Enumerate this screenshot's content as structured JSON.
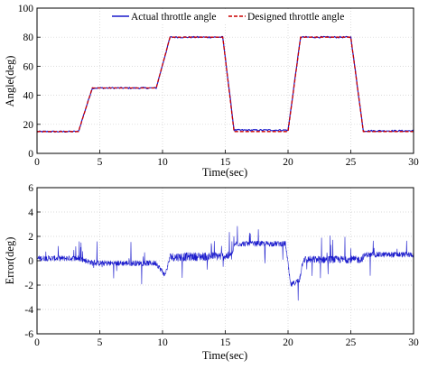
{
  "chart_data": [
    {
      "type": "line",
      "title": "",
      "xlabel": "Time(sec)",
      "ylabel": "Angle(deg)",
      "xlim": [
        0,
        30
      ],
      "ylim": [
        0,
        100
      ],
      "xticks": [
        0,
        5,
        10,
        15,
        20,
        25,
        30
      ],
      "yticks": [
        0,
        20,
        40,
        60,
        80,
        100
      ],
      "grid": true,
      "legend_position": "top",
      "series": [
        {
          "name": "Actual throttle angle",
          "color": "#1a1acc",
          "style": "solid",
          "x": [
            0,
            3.3,
            4.4,
            9.5,
            10.6,
            14.8,
            15.7,
            20.0,
            21.0,
            25.0,
            26.0,
            30
          ],
          "y": [
            15,
            15,
            45,
            45,
            80,
            80,
            16,
            16,
            80,
            80,
            15.5,
            15.5
          ]
        },
        {
          "name": "Designed throttle angle",
          "color": "#cc0000",
          "style": "dashed",
          "x": [
            0,
            3.3,
            4.4,
            9.5,
            10.6,
            14.8,
            15.7,
            20.0,
            21.0,
            25.0,
            26.0,
            30
          ],
          "y": [
            15,
            15,
            45,
            45,
            80,
            80,
            15,
            15,
            80,
            80,
            15,
            15
          ]
        }
      ]
    },
    {
      "type": "line",
      "title": "",
      "xlabel": "Time(sec)",
      "ylabel": "Error(deg)",
      "xlim": [
        0,
        30
      ],
      "ylim": [
        -6,
        6
      ],
      "xticks": [
        0,
        5,
        10,
        15,
        20,
        25,
        30
      ],
      "yticks": [
        -6,
        -4,
        -2,
        0,
        2,
        4,
        6
      ],
      "grid": true,
      "series": [
        {
          "color": "#1a1acc",
          "style": "solid",
          "x": [
            0,
            3.3,
            4.5,
            9.5,
            10.2,
            10.6,
            15.5,
            15.8,
            19.8,
            20.2,
            20.9,
            21.2,
            25.8,
            26.2,
            30
          ],
          "y": [
            0.2,
            0.2,
            -0.2,
            -0.2,
            -1.2,
            0.3,
            0.4,
            1.4,
            1.4,
            -2.0,
            -1.6,
            0.1,
            0.1,
            0.5,
            0.5
          ]
        }
      ]
    }
  ]
}
